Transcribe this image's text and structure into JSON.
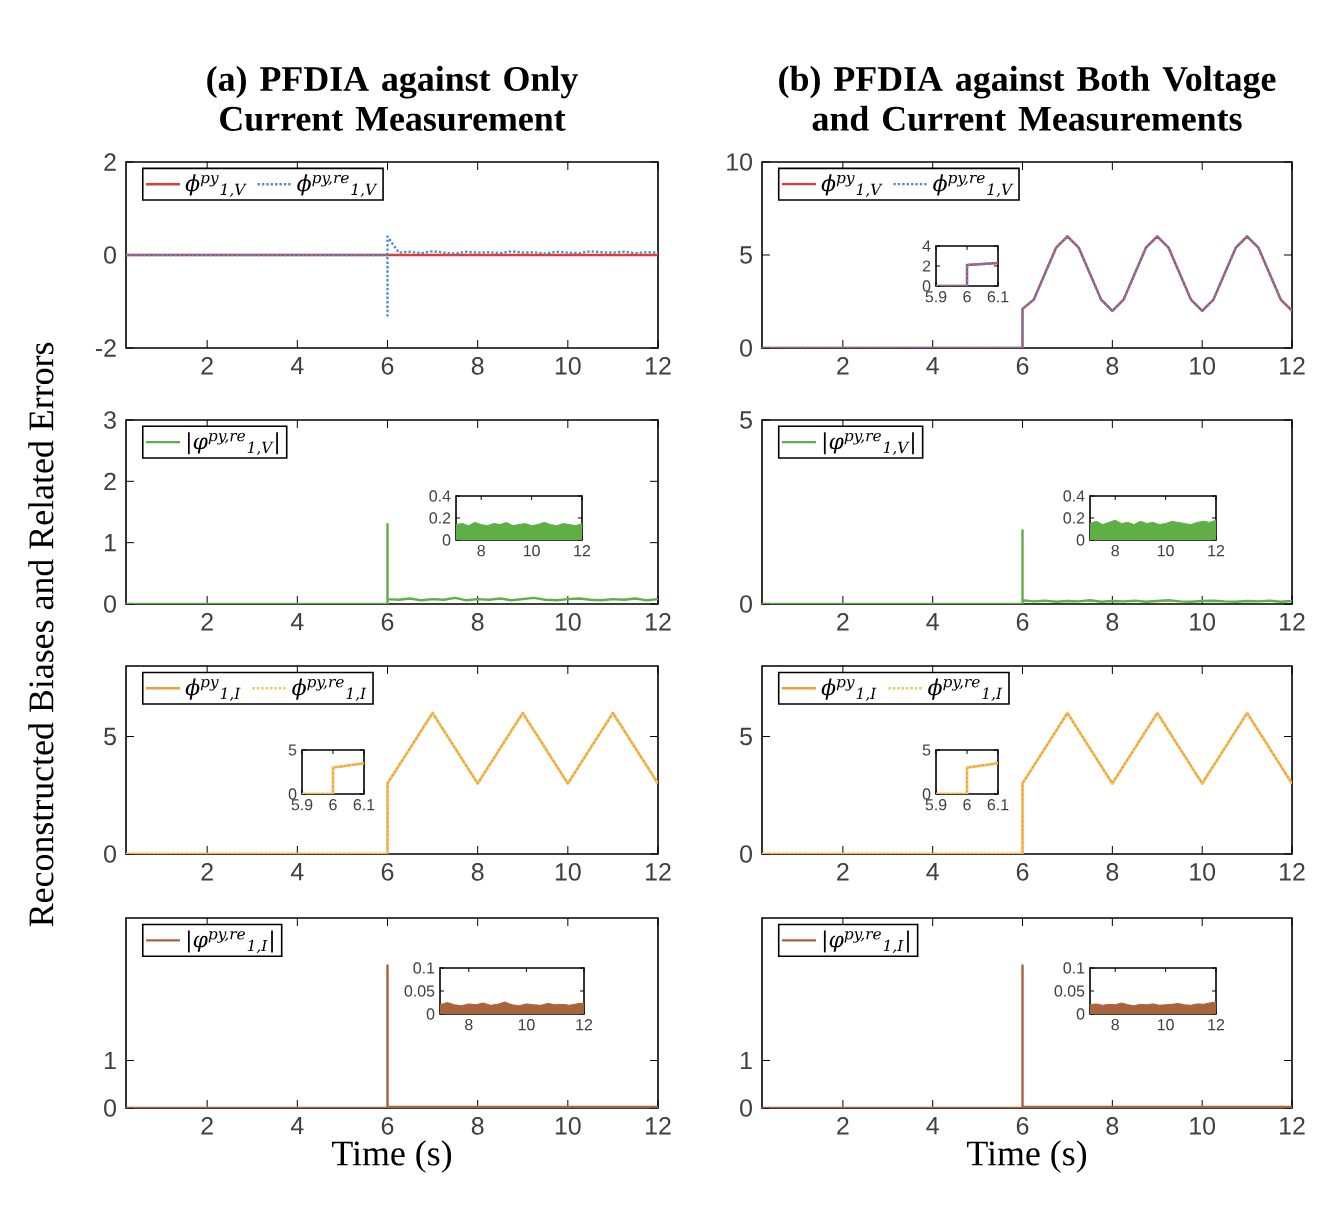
{
  "chart_data": [
    {
      "type": "line",
      "title": "(a) PFDIA against Only Current Measurement",
      "ylabel": "Reconstructed Biases and Related Errors",
      "xlim": [
        0.2,
        12
      ],
      "xticks": [
        2,
        4,
        6,
        8,
        10,
        12
      ],
      "ylim": [
        -2,
        2
      ],
      "yticks": [
        -2,
        0,
        2
      ],
      "legend": "top left",
      "series": [
        {
          "name": "ϕ$^{py}$$_{1,V}$",
          "color": "#e03c31",
          "line_style": "solid",
          "x": [
            0.2,
            12
          ],
          "values": [
            0,
            0
          ]
        },
        {
          "name": "ϕ$^{py,re}$$_{1,V}$",
          "color": "#4a8fd8",
          "line_style": "dotted",
          "x": [
            0.2,
            6,
            6,
            6,
            6.25,
            6.5,
            6.75,
            7,
            7.25,
            7.5,
            7.75,
            8,
            8.25,
            8.5,
            8.75,
            9,
            9.25,
            9.5,
            9.75,
            10,
            10.25,
            10.5,
            10.75,
            11,
            11.25,
            11.5,
            11.75,
            12
          ],
          "values": [
            0,
            0,
            -1.3,
            0.4,
            0.05,
            0.07,
            0.04,
            0.08,
            0.05,
            0.03,
            0.07,
            0.05,
            0.06,
            0.04,
            0.08,
            0.05,
            0.06,
            0.03,
            0.07,
            0.05,
            0.04,
            0.08,
            0.06,
            0.05,
            0.07,
            0.04,
            0.06,
            0.05
          ]
        }
      ]
    },
    {
      "type": "line",
      "title": "(b) PFDIA against Both Voltage and Current Measurements",
      "xlim": [
        0.2,
        12
      ],
      "xticks": [
        2,
        4,
        6,
        8,
        10,
        12
      ],
      "ylim": [
        0,
        10
      ],
      "yticks": [
        0,
        5,
        10
      ],
      "legend": "top left",
      "series": [
        {
          "name": "ϕ$^{py}$$_{1,V}$",
          "color": "#e03c31",
          "line_style": "solid",
          "x": [
            0.2,
            6,
            6,
            6.25,
            6.5,
            6.75,
            7,
            7.25,
            7.5,
            7.75,
            8,
            8.25,
            8.5,
            8.75,
            9,
            9.25,
            9.5,
            9.75,
            10,
            10.25,
            10.5,
            10.75,
            11,
            11.25,
            11.5,
            11.75,
            12
          ],
          "values": [
            0,
            0,
            2.1,
            2.6,
            4,
            5.4,
            6,
            5.4,
            4,
            2.6,
            2,
            2.6,
            4,
            5.4,
            6,
            5.4,
            4,
            2.6,
            2,
            2.6,
            4,
            5.4,
            6,
            5.4,
            4,
            2.6,
            2
          ]
        },
        {
          "name": "ϕ$^{py,re}$$_{1,V}$",
          "color": "#4a8fd8",
          "line_style": "dotted",
          "x": [
            0.2,
            6,
            6,
            6.25,
            6.5,
            6.75,
            7,
            7.25,
            7.5,
            7.75,
            8,
            8.25,
            8.5,
            8.75,
            9,
            9.25,
            9.5,
            9.75,
            10,
            10.25,
            10.5,
            10.75,
            11,
            11.25,
            11.5,
            11.75,
            12
          ],
          "values": [
            0,
            0,
            2.1,
            2.6,
            4,
            5.4,
            6,
            5.4,
            4,
            2.6,
            2,
            2.6,
            4,
            5.4,
            6,
            5.4,
            4,
            2.6,
            2,
            2.6,
            4,
            5.4,
            6,
            5.4,
            4,
            2.6,
            2
          ]
        }
      ]
    },
    {
      "type": "line",
      "xlim": [
        5.9,
        6.1
      ],
      "xticks": [
        5.9,
        6,
        6.1
      ],
      "ylim": [
        0,
        4
      ],
      "yticks": [
        0,
        2,
        4
      ],
      "series": [
        {
          "color": "#e03c31",
          "line_style": "solid",
          "x": [
            5.9,
            6,
            6,
            6.1
          ],
          "values": [
            0,
            0,
            2.1,
            2.3
          ]
        },
        {
          "color": "#4a8fd8",
          "line_style": "dotted",
          "x": [
            5.9,
            6,
            6,
            6.1
          ],
          "values": [
            0,
            0,
            2.1,
            2.3
          ]
        }
      ]
    },
    {
      "type": "line",
      "xlim": [
        0.2,
        12
      ],
      "xticks": [
        2,
        4,
        6,
        8,
        10,
        12
      ],
      "ylim": [
        0,
        3
      ],
      "yticks": [
        0,
        1,
        2,
        3
      ],
      "legend": "top left",
      "series": [
        {
          "name": "|φ$^{py,re}$$_{1,V}$|",
          "color": "#5fae46",
          "line_style": "solid",
          "x": [
            0.2,
            6,
            6,
            6,
            6.25,
            6.5,
            6.75,
            7,
            7.25,
            7.5,
            7.75,
            8,
            8.25,
            8.5,
            8.75,
            9,
            9.25,
            9.5,
            9.75,
            10,
            10.25,
            10.5,
            10.75,
            11,
            11.25,
            11.5,
            11.75,
            12
          ],
          "values": [
            0,
            0,
            1.3,
            0.08,
            0.07,
            0.09,
            0.06,
            0.08,
            0.07,
            0.1,
            0.06,
            0.08,
            0.07,
            0.09,
            0.06,
            0.08,
            0.1,
            0.07,
            0.06,
            0.08,
            0.09,
            0.07,
            0.06,
            0.08,
            0.07,
            0.09,
            0.06,
            0.08
          ]
        }
      ]
    },
    {
      "type": "area",
      "xlim": [
        7,
        12
      ],
      "xticks": [
        8,
        10,
        12
      ],
      "ylim": [
        0,
        0.4
      ],
      "yticks": [
        0,
        0.2,
        0.4
      ],
      "series": [
        {
          "color": "#5fae46",
          "x": [
            7,
            7.25,
            7.5,
            7.75,
            8,
            8.25,
            8.5,
            8.75,
            9,
            9.25,
            9.5,
            9.75,
            10,
            10.25,
            10.5,
            10.75,
            11,
            11.25,
            11.5,
            11.75,
            12
          ],
          "values": [
            0.14,
            0.15,
            0.13,
            0.16,
            0.14,
            0.13,
            0.15,
            0.14,
            0.16,
            0.13,
            0.14,
            0.15,
            0.13,
            0.14,
            0.16,
            0.14,
            0.13,
            0.15,
            0.14,
            0.13,
            0.15
          ]
        }
      ]
    },
    {
      "type": "line",
      "xlim": [
        0.2,
        12
      ],
      "xticks": [
        2,
        4,
        6,
        8,
        10,
        12
      ],
      "ylim": [
        0,
        5
      ],
      "yticks": [
        0,
        5
      ],
      "legend": "top left",
      "series": [
        {
          "name": "|φ$^{py,re}$$_{1,V}$|",
          "color": "#5fae46",
          "line_style": "solid",
          "x": [
            0.2,
            6,
            6,
            6,
            6.25,
            6.5,
            6.75,
            7,
            7.25,
            7.5,
            7.75,
            8,
            8.25,
            8.5,
            8.75,
            9,
            9.25,
            9.5,
            9.75,
            10,
            10.25,
            10.5,
            10.75,
            11,
            11.25,
            11.5,
            11.75,
            12
          ],
          "values": [
            0,
            0,
            2,
            0.1,
            0.07,
            0.09,
            0.06,
            0.08,
            0.07,
            0.1,
            0.06,
            0.08,
            0.07,
            0.09,
            0.06,
            0.08,
            0.1,
            0.07,
            0.06,
            0.08,
            0.09,
            0.07,
            0.06,
            0.08,
            0.07,
            0.09,
            0.06,
            0.08
          ]
        }
      ]
    },
    {
      "type": "area",
      "xlim": [
        7,
        12
      ],
      "xticks": [
        8,
        10,
        12
      ],
      "ylim": [
        0,
        0.4
      ],
      "yticks": [
        0,
        0.2,
        0.4
      ],
      "series": [
        {
          "color": "#5fae46",
          "x": [
            7,
            7.25,
            7.5,
            7.75,
            8,
            8.25,
            8.5,
            8.75,
            9,
            9.25,
            9.5,
            9.75,
            10,
            10.25,
            10.5,
            10.75,
            11,
            11.25,
            11.5,
            11.75,
            12
          ],
          "values": [
            0.15,
            0.17,
            0.14,
            0.16,
            0.18,
            0.15,
            0.16,
            0.14,
            0.17,
            0.15,
            0.16,
            0.14,
            0.15,
            0.17,
            0.16,
            0.15,
            0.14,
            0.16,
            0.17,
            0.16,
            0.18
          ]
        }
      ]
    },
    {
      "type": "line",
      "xlim": [
        0.2,
        12
      ],
      "xticks": [
        2,
        4,
        6,
        8,
        10,
        12
      ],
      "ylim": [
        0,
        8
      ],
      "yticks": [
        0,
        5
      ],
      "legend": "top left",
      "series": [
        {
          "name": "ϕ$^{py}$$_{1,I}$",
          "color": "#f29e38",
          "line_style": "solid",
          "x": [
            0.2,
            6,
            6,
            7,
            8,
            9,
            10,
            11,
            12
          ],
          "values": [
            0,
            0,
            3,
            6,
            3,
            6,
            3,
            6,
            3
          ]
        },
        {
          "name": "ϕ$^{py,re}$$_{1,I}$",
          "color": "#efc65a",
          "line_style": "dotted",
          "x": [
            0.2,
            6,
            6,
            7,
            8,
            9,
            10,
            11,
            12
          ],
          "values": [
            0,
            0,
            3,
            6,
            3,
            6,
            3,
            6,
            3
          ]
        }
      ]
    },
    {
      "type": "line",
      "xlim": [
        5.9,
        6.1
      ],
      "xticks": [
        5.9,
        6,
        6.1
      ],
      "ylim": [
        0,
        5
      ],
      "yticks": [
        0,
        5
      ],
      "series": [
        {
          "color": "#f29e38",
          "line_style": "solid",
          "x": [
            5.9,
            6,
            6,
            6.1
          ],
          "values": [
            0,
            0,
            3,
            3.5
          ]
        },
        {
          "color": "#efc65a",
          "line_style": "dotted",
          "x": [
            5.9,
            6,
            6,
            6.1
          ],
          "values": [
            0,
            0,
            3,
            3.5
          ]
        }
      ]
    },
    {
      "type": "line",
      "xlim": [
        0.2,
        12
      ],
      "xticks": [
        2,
        4,
        6,
        8,
        10,
        12
      ],
      "ylim": [
        0,
        8
      ],
      "yticks": [
        0,
        5
      ],
      "legend": "top left",
      "series": [
        {
          "name": "ϕ$^{py}$$_{1,I}$",
          "color": "#f29e38",
          "line_style": "solid",
          "x": [
            0.2,
            6,
            6,
            7,
            8,
            9,
            10,
            11,
            12
          ],
          "values": [
            0,
            0,
            3,
            6,
            3,
            6,
            3,
            6,
            3
          ]
        },
        {
          "name": "ϕ$^{py,re}$$_{1,I}$",
          "color": "#efc65a",
          "line_style": "dotted",
          "x": [
            0.2,
            6,
            6,
            7,
            8,
            9,
            10,
            11,
            12
          ],
          "values": [
            0,
            0,
            3,
            6,
            3,
            6,
            3,
            6,
            3
          ]
        }
      ]
    },
    {
      "type": "line",
      "xlim": [
        5.9,
        6.1
      ],
      "xticks": [
        5.9,
        6,
        6.1
      ],
      "ylim": [
        0,
        5
      ],
      "yticks": [
        0,
        5
      ],
      "series": [
        {
          "color": "#f29e38",
          "line_style": "solid",
          "x": [
            5.9,
            6,
            6,
            6.1
          ],
          "values": [
            0,
            0,
            3,
            3.5
          ]
        },
        {
          "color": "#efc65a",
          "line_style": "dotted",
          "x": [
            5.9,
            6,
            6,
            6.1
          ],
          "values": [
            0,
            0,
            3,
            3.5
          ]
        }
      ]
    },
    {
      "type": "line",
      "xlabel": "Time (s)",
      "xlim": [
        0.2,
        12
      ],
      "xticks": [
        2,
        4,
        6,
        8,
        10,
        12
      ],
      "ylim": [
        0,
        4
      ],
      "yticks": [
        0,
        1
      ],
      "legend": "top left",
      "series": [
        {
          "name": "|φ$^{py,re}$$_{1,I}$|",
          "color": "#a8643c",
          "line_style": "solid",
          "x": [
            0.2,
            6,
            6,
            6,
            12
          ],
          "values": [
            0,
            0,
            3,
            0.02,
            0.02
          ]
        }
      ]
    },
    {
      "type": "area",
      "xlim": [
        7,
        12
      ],
      "xticks": [
        8,
        10,
        12
      ],
      "ylim": [
        0,
        0.1
      ],
      "yticks": [
        0,
        0.05,
        0.1
      ],
      "series": [
        {
          "color": "#a8643c",
          "x": [
            7,
            7.25,
            7.5,
            7.75,
            8,
            8.25,
            8.5,
            8.75,
            9,
            9.25,
            9.5,
            9.75,
            10,
            10.25,
            10.5,
            10.75,
            11,
            11.25,
            11.5,
            11.75,
            12
          ],
          "values": [
            0.02,
            0.025,
            0.02,
            0.018,
            0.022,
            0.02,
            0.024,
            0.019,
            0.021,
            0.026,
            0.02,
            0.018,
            0.022,
            0.02,
            0.019,
            0.023,
            0.02,
            0.021,
            0.019,
            0.022,
            0.024
          ]
        }
      ]
    },
    {
      "type": "line",
      "xlabel": "Time (s)",
      "xlim": [
        0.2,
        12
      ],
      "xticks": [
        2,
        4,
        6,
        8,
        10,
        12
      ],
      "ylim": [
        0,
        4
      ],
      "yticks": [
        0,
        1
      ],
      "legend": "top left",
      "series": [
        {
          "name": "|φ$^{py,re}$$_{1,I}$|",
          "color": "#a8643c",
          "line_style": "solid",
          "x": [
            0.2,
            6,
            6,
            6,
            12
          ],
          "values": [
            0,
            0,
            3,
            0.02,
            0.02
          ]
        }
      ]
    },
    {
      "type": "area",
      "xlim": [
        7,
        12
      ],
      "xticks": [
        8,
        10,
        12
      ],
      "ylim": [
        0,
        0.1
      ],
      "yticks": [
        0,
        0.05,
        0.1
      ],
      "series": [
        {
          "color": "#a8643c",
          "x": [
            7,
            7.25,
            7.5,
            7.75,
            8,
            8.25,
            8.5,
            8.75,
            9,
            9.25,
            9.5,
            9.75,
            10,
            10.25,
            10.5,
            10.75,
            11,
            11.25,
            11.5,
            11.75,
            12
          ],
          "values": [
            0.02,
            0.022,
            0.019,
            0.021,
            0.02,
            0.024,
            0.02,
            0.018,
            0.021,
            0.02,
            0.022,
            0.019,
            0.02,
            0.021,
            0.023,
            0.02,
            0.019,
            0.022,
            0.021,
            0.024,
            0.026
          ]
        }
      ]
    }
  ]
}
